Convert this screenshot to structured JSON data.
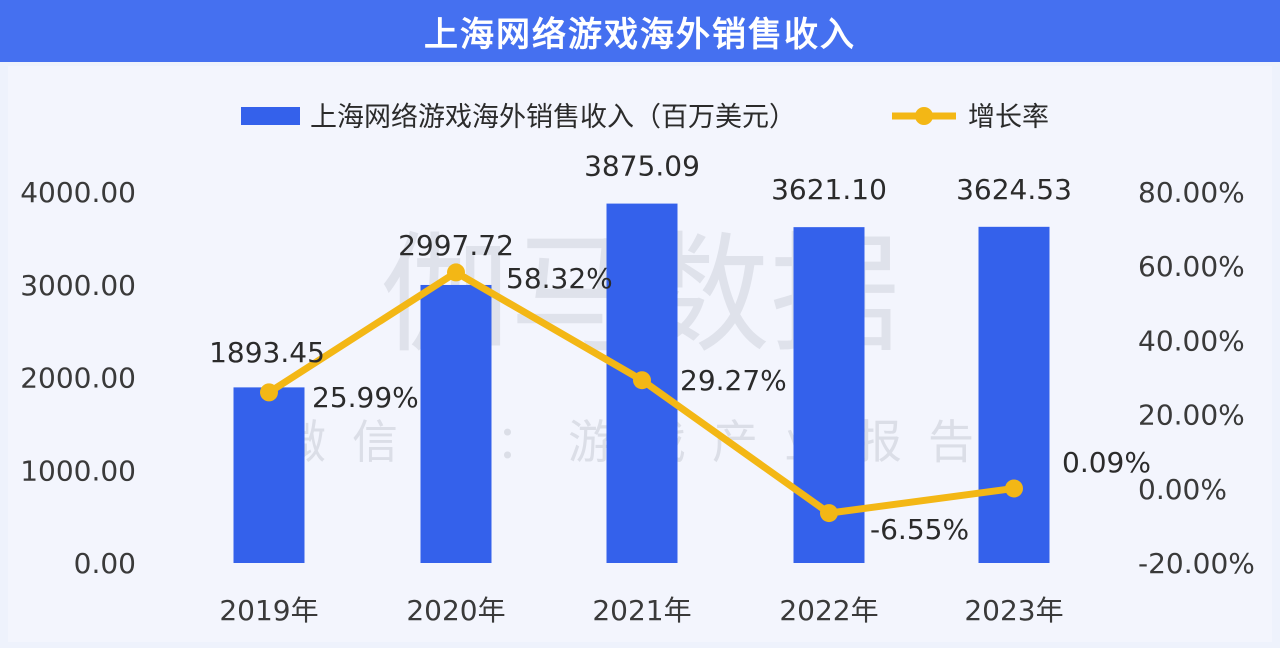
{
  "title": "上海网络游戏海外销售收入",
  "watermark": {
    "main": "伽马数据",
    "sub": "微信号：游戏产业报告"
  },
  "colors": {
    "title_bg": "#4570f0",
    "bar": "#3461eb",
    "line": "#f3b715",
    "background": "#eef2fc"
  },
  "chart_data": {
    "type": "bar",
    "categories": [
      "2019年",
      "2020年",
      "2021年",
      "2022年",
      "2023年"
    ],
    "series": [
      {
        "name": "上海网络游戏海外销售收入（百万美元）",
        "type": "bar",
        "axis": "left",
        "values": [
          1893.45,
          2997.72,
          3875.09,
          3621.1,
          3624.53
        ],
        "labels": [
          "1893.45",
          "2997.72",
          "3875.09",
          "3621.10",
          "3624.53"
        ]
      },
      {
        "name": "增长率",
        "type": "line",
        "axis": "right",
        "values": [
          25.99,
          58.32,
          29.27,
          -6.55,
          0.09
        ],
        "labels": [
          "25.99%",
          "58.32%",
          "29.27%",
          "-6.55%",
          "0.09%"
        ]
      }
    ],
    "left_axis": {
      "ylim": [
        0,
        4000
      ],
      "ticks": [
        0,
        1000,
        2000,
        3000,
        4000
      ],
      "tick_labels": [
        "0.00",
        "1000.00",
        "2000.00",
        "3000.00",
        "4000.00"
      ]
    },
    "right_axis": {
      "ylim": [
        -20,
        80
      ],
      "ticks": [
        -20,
        0,
        20,
        40,
        60,
        80
      ],
      "tick_labels": [
        "-20.00%",
        "0.00%",
        "20.00%",
        "40.00%",
        "60.00%",
        "80.00%"
      ]
    },
    "grid": false,
    "legend_position": "top-center"
  }
}
